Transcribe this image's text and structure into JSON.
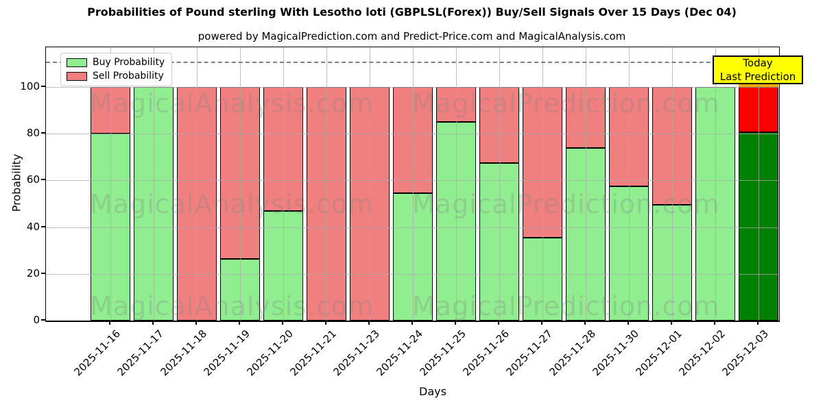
{
  "title": "Probabilities of Pound sterling With Lesotho loti (GBPLSL(Forex)) Buy/Sell Signals Over 15 Days (Dec 04)",
  "subtitle": "powered by MagicalPrediction.com and Predict-Price.com and MagicalAnalysis.com",
  "chart_data": {
    "type": "bar",
    "stacked": true,
    "title": "Probabilities of Pound sterling With Lesotho loti (GBPLSL(Forex)) Buy/Sell Signals Over 15 Days (Dec 04)",
    "xlabel": "Days",
    "ylabel": "Probability",
    "categories": [
      "2025-11-16",
      "2025-11-17",
      "2025-11-18",
      "2025-11-19",
      "2025-11-20",
      "2025-11-21",
      "2025-11-23",
      "2025-11-24",
      "2025-11-25",
      "2025-11-26",
      "2025-11-27",
      "2025-11-28",
      "2025-11-30",
      "2025-12-01",
      "2025-12-02",
      "2025-12-03"
    ],
    "series": [
      {
        "name": "Buy Probability",
        "color": "#90EE90",
        "today_color": "#008000",
        "values": [
          80,
          100,
          0,
          26.5,
          47,
          0,
          0,
          54.5,
          85,
          67.5,
          35.5,
          74,
          57.5,
          49.5,
          100,
          80.5
        ]
      },
      {
        "name": "Sell Probability",
        "color": "#F08080",
        "today_color": "#FF0000",
        "values": [
          20,
          0,
          100,
          73.5,
          53,
          100,
          100,
          45.5,
          15,
          32.5,
          64.5,
          26,
          42.5,
          50.5,
          0,
          19.5
        ]
      }
    ],
    "today_index": 15,
    "today_cap_color": "#FFA500",
    "bar_edge_color": "#000000",
    "yticks": [
      0,
      20,
      40,
      60,
      80,
      100
    ],
    "ylim": [
      0,
      117
    ],
    "dashed_line_y": 110.7,
    "grid": true,
    "legend_position": "top-left"
  },
  "legend": {
    "items": [
      {
        "label": "Buy Probability",
        "color": "#90EE90"
      },
      {
        "label": "Sell Probability",
        "color": "#F08080"
      }
    ]
  },
  "annotation": {
    "line1": "Today",
    "line2": "Last Prediction",
    "bg_color": "#FFFF00"
  },
  "watermarks": {
    "left_text": "MagicalAnalysis.com",
    "right_text": "MagicalPrediction.com"
  }
}
